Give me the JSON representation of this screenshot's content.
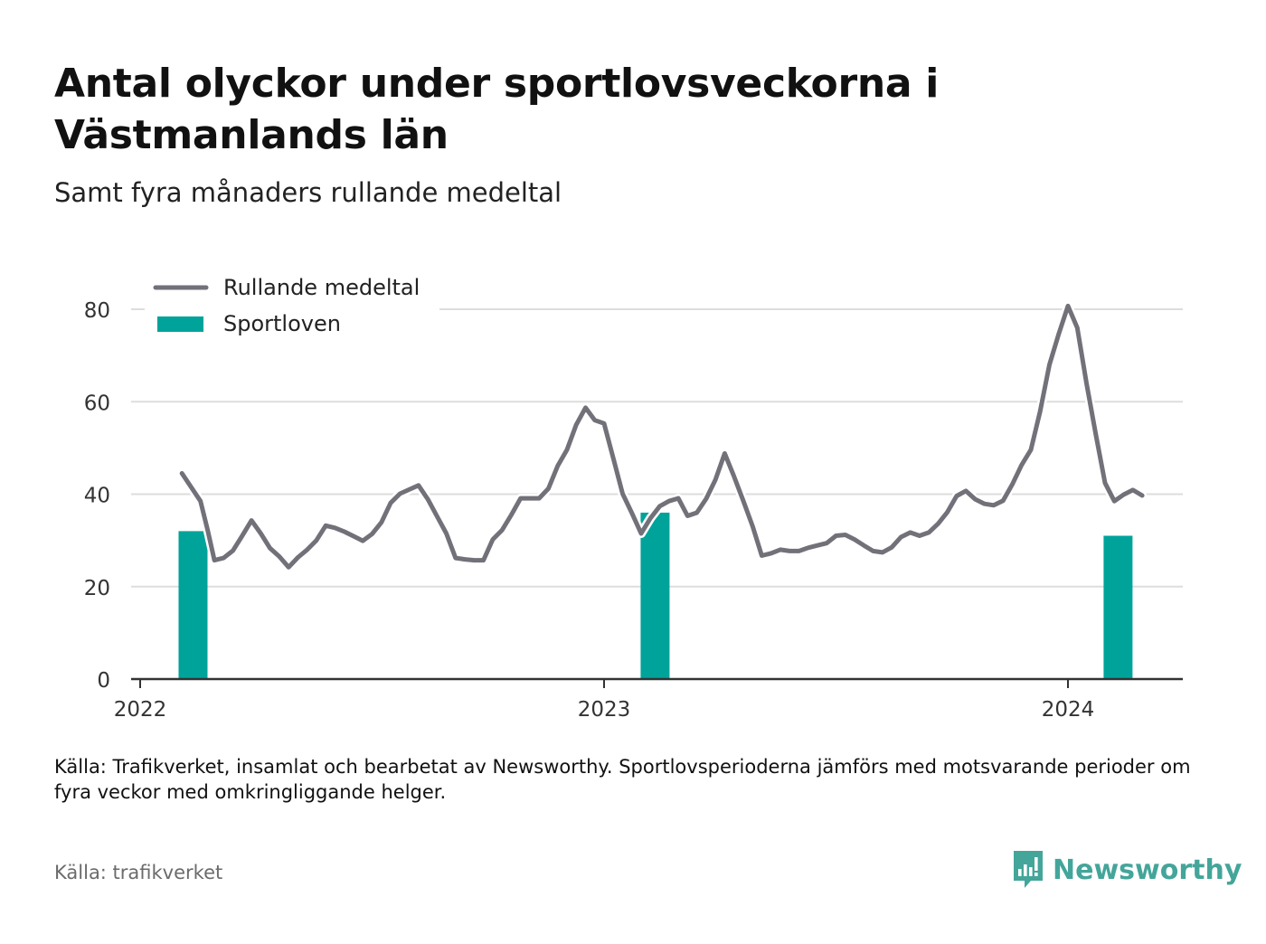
{
  "title": "Antal olyckor under sportlovsveckorna i Västmanlands län",
  "subtitle": "Samt fyra månaders rullande medeltal",
  "footnote": "Källa: Trafikverket, insamlat och bearbetat av Newsworthy. Sportlovsperioderna jämförs med motsvarande perioder om fyra veckor med omkringliggande helger.",
  "source": "Källa: trafikverket",
  "brand": "Newsworthy",
  "colors": {
    "line": "#727179",
    "bar": "#00a39a",
    "grid": "#dddddd",
    "axis": "#333333",
    "brand": "#44a59a"
  },
  "chart_data": {
    "type": "bar+line",
    "legend": {
      "placement": "top-left",
      "items": [
        {
          "label": "Rullande medeltal",
          "kind": "line"
        },
        {
          "label": "Sportloven",
          "kind": "bar"
        }
      ]
    },
    "x_axis": {
      "type": "time",
      "ticks": [
        {
          "value": 2022,
          "label": "2022"
        },
        {
          "value": 2023,
          "label": "2023"
        },
        {
          "value": 2024,
          "label": "2024"
        }
      ],
      "range": [
        2022,
        2024.25
      ]
    },
    "y_axis": {
      "ticks": [
        {
          "value": 0,
          "label": "0"
        },
        {
          "value": 20,
          "label": "20"
        },
        {
          "value": 40,
          "label": "40"
        },
        {
          "value": 60,
          "label": "60"
        },
        {
          "value": 80,
          "label": "80"
        }
      ],
      "range": [
        0,
        90
      ]
    },
    "grid": true,
    "bars": [
      {
        "x": 2022.114,
        "value": 32
      },
      {
        "x": 2023.11,
        "value": 36
      },
      {
        "x": 2024.108,
        "value": 31
      }
    ],
    "line": [
      [
        2022.09,
        44.5
      ],
      [
        2022.11,
        41.5
      ],
      [
        2022.13,
        38.5
      ],
      [
        2022.146,
        32
      ],
      [
        2022.16,
        25.7
      ],
      [
        2022.18,
        26.2
      ],
      [
        2022.2,
        27.8
      ],
      [
        2022.22,
        31
      ],
      [
        2022.24,
        34.3
      ],
      [
        2022.26,
        31.5
      ],
      [
        2022.28,
        28.3
      ],
      [
        2022.3,
        26.5
      ],
      [
        2022.32,
        24.2
      ],
      [
        2022.34,
        26.3
      ],
      [
        2022.36,
        28
      ],
      [
        2022.38,
        30
      ],
      [
        2022.4,
        33.2
      ],
      [
        2022.42,
        32.7
      ],
      [
        2022.44,
        31.9
      ],
      [
        2022.46,
        30.9
      ],
      [
        2022.48,
        29.9
      ],
      [
        2022.5,
        31.4
      ],
      [
        2022.52,
        33.9
      ],
      [
        2022.54,
        38.1
      ],
      [
        2022.56,
        40.1
      ],
      [
        2022.58,
        41
      ],
      [
        2022.6,
        41.9
      ],
      [
        2022.62,
        38.9
      ],
      [
        2022.64,
        35.2
      ],
      [
        2022.66,
        31.5
      ],
      [
        2022.68,
        26.2
      ],
      [
        2022.7,
        25.9
      ],
      [
        2022.72,
        25.7
      ],
      [
        2022.74,
        25.7
      ],
      [
        2022.76,
        30.2
      ],
      [
        2022.78,
        32.2
      ],
      [
        2022.8,
        35.5
      ],
      [
        2022.82,
        39.1
      ],
      [
        2022.84,
        39.1
      ],
      [
        2022.86,
        39.1
      ],
      [
        2022.88,
        41.2
      ],
      [
        2022.9,
        46.1
      ],
      [
        2022.92,
        49.6
      ],
      [
        2022.94,
        55
      ],
      [
        2022.96,
        58.7
      ],
      [
        2022.98,
        56
      ],
      [
        2023.0,
        55.3
      ],
      [
        2023.02,
        47.7
      ],
      [
        2023.04,
        40.1
      ],
      [
        2023.06,
        35.9
      ],
      [
        2023.08,
        31.5
      ],
      [
        2023.1,
        34.8
      ],
      [
        2023.12,
        37.4
      ],
      [
        2023.14,
        38.5
      ],
      [
        2023.16,
        39.1
      ],
      [
        2023.18,
        35.3
      ],
      [
        2023.2,
        36
      ],
      [
        2023.22,
        39
      ],
      [
        2023.24,
        43.1
      ],
      [
        2023.26,
        48.8
      ],
      [
        2023.28,
        43.9
      ],
      [
        2023.3,
        38.6
      ],
      [
        2023.32,
        33.1
      ],
      [
        2023.34,
        26.7
      ],
      [
        2023.36,
        27.2
      ],
      [
        2023.38,
        28
      ],
      [
        2023.4,
        27.7
      ],
      [
        2023.42,
        27.7
      ],
      [
        2023.44,
        28.4
      ],
      [
        2023.46,
        28.9
      ],
      [
        2023.48,
        29.4
      ],
      [
        2023.5,
        31
      ],
      [
        2023.52,
        31.2
      ],
      [
        2023.54,
        30.2
      ],
      [
        2023.56,
        28.9
      ],
      [
        2023.58,
        27.7
      ],
      [
        2023.6,
        27.4
      ],
      [
        2023.62,
        28.5
      ],
      [
        2023.64,
        30.7
      ],
      [
        2023.66,
        31.7
      ],
      [
        2023.68,
        31
      ],
      [
        2023.7,
        31.7
      ],
      [
        2023.72,
        33.6
      ],
      [
        2023.74,
        36.1
      ],
      [
        2023.76,
        39.6
      ],
      [
        2023.78,
        40.7
      ],
      [
        2023.8,
        38.9
      ],
      [
        2023.82,
        37.9
      ],
      [
        2023.84,
        37.6
      ],
      [
        2023.86,
        38.6
      ],
      [
        2023.88,
        42.1
      ],
      [
        2023.9,
        46.3
      ],
      [
        2023.92,
        49.6
      ],
      [
        2023.94,
        57.9
      ],
      [
        2023.96,
        68
      ],
      [
        2023.98,
        74.6
      ],
      [
        2024.0,
        80.7
      ],
      [
        2024.02,
        76
      ],
      [
        2024.04,
        64
      ],
      [
        2024.06,
        52.9
      ],
      [
        2024.08,
        42.4
      ],
      [
        2024.1,
        38.5
      ],
      [
        2024.12,
        39.9
      ],
      [
        2024.14,
        40.9
      ],
      [
        2024.16,
        39.7
      ]
    ]
  }
}
